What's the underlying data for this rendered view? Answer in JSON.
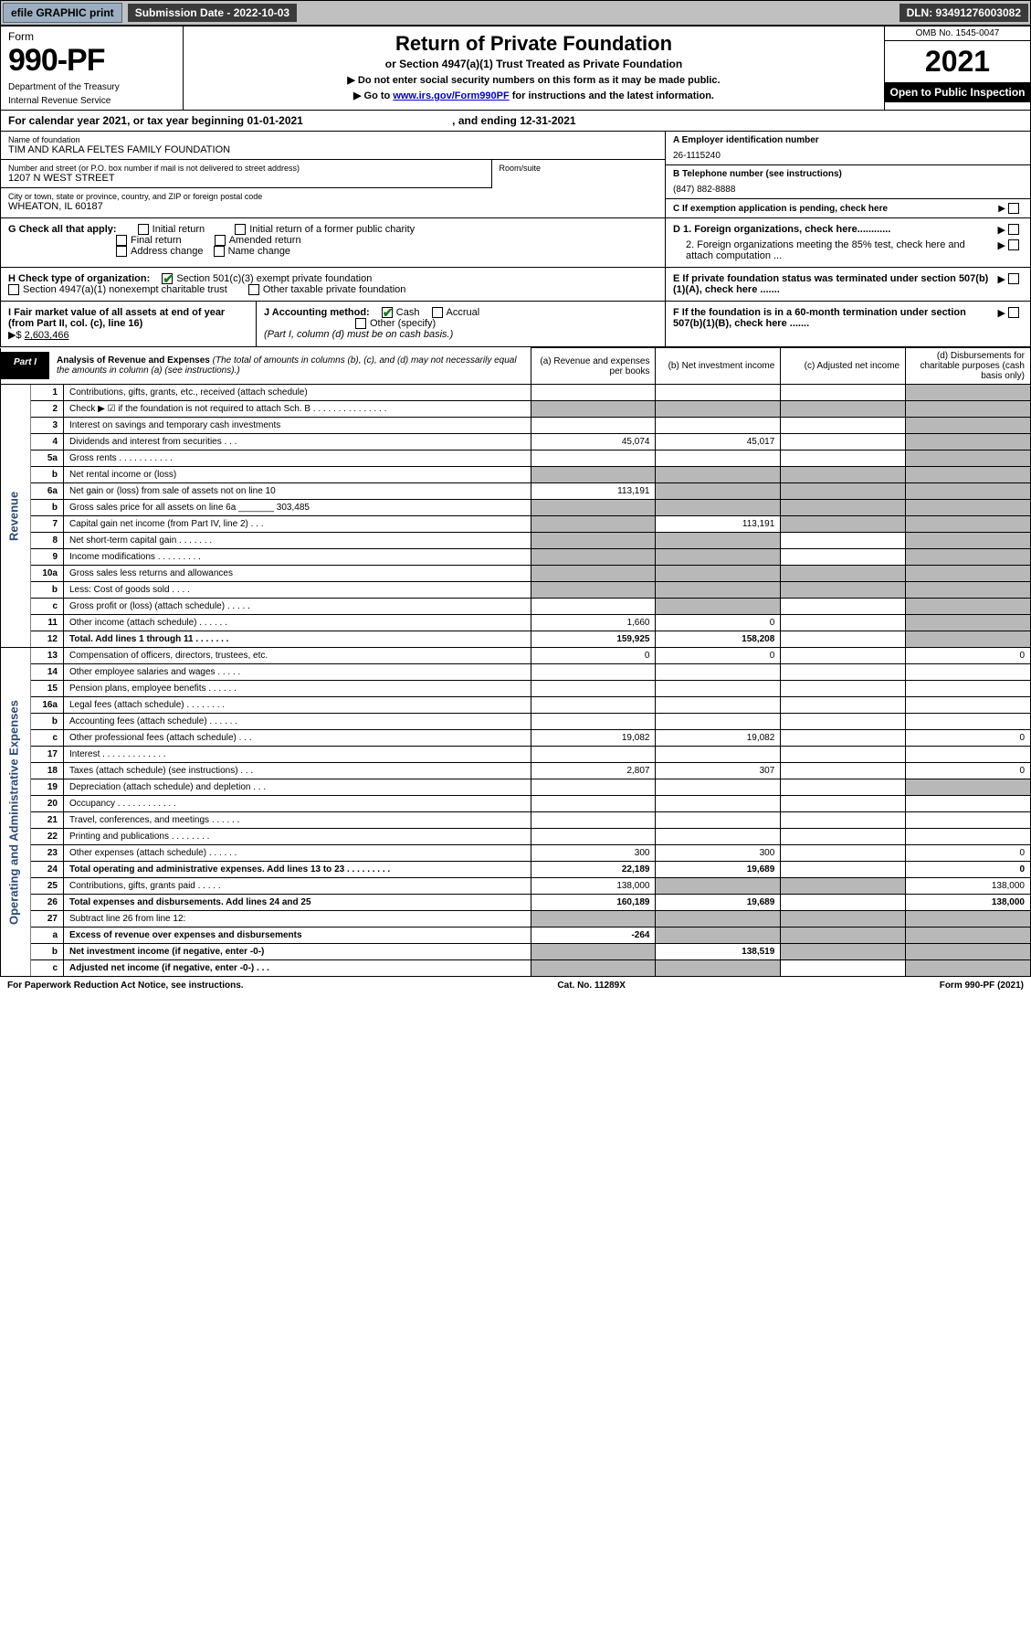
{
  "topbar": {
    "efile": "efile GRAPHIC print",
    "submission_label": "Submission Date - 2022-10-03",
    "dln": "DLN: 93491276003082"
  },
  "header": {
    "form_label": "Form",
    "form_number": "990-PF",
    "dept1": "Department of the Treasury",
    "dept2": "Internal Revenue Service",
    "title": "Return of Private Foundation",
    "subtitle": "or Section 4947(a)(1) Trust Treated as Private Foundation",
    "note1": "▶ Do not enter social security numbers on this form as it may be made public.",
    "note2_pre": "▶ Go to ",
    "note2_link": "www.irs.gov/Form990PF",
    "note2_post": " for instructions and the latest information.",
    "omb": "OMB No. 1545-0047",
    "year": "2021",
    "open": "Open to Public Inspection"
  },
  "calendar": {
    "text_pre": "For calendar year 2021, or tax year beginning ",
    "begin": "01-01-2021",
    "text_mid": " , and ending ",
    "end": "12-31-2021"
  },
  "info": {
    "name_lbl": "Name of foundation",
    "name_val": "TIM AND KARLA FELTES FAMILY FOUNDATION",
    "addr_lbl": "Number and street (or P.O. box number if mail is not delivered to street address)",
    "addr_val": "1207 N WEST STREET",
    "room_lbl": "Room/suite",
    "city_lbl": "City or town, state or province, country, and ZIP or foreign postal code",
    "city_val": "WHEATON, IL  60187",
    "a_lbl": "A Employer identification number",
    "a_val": "26-1115240",
    "b_lbl": "B Telephone number (see instructions)",
    "b_val": "(847) 882-8888",
    "c_lbl": "C If exemption application is pending, check here",
    "g_lbl": "G Check all that apply:",
    "g_opts": [
      "Initial return",
      "Final return",
      "Address change",
      "Initial return of a former public charity",
      "Amended return",
      "Name change"
    ],
    "d1": "D 1. Foreign organizations, check here............",
    "d2": "2. Foreign organizations meeting the 85% test, check here and attach computation ...",
    "h_lbl": "H Check type of organization:",
    "h_1": "Section 501(c)(3) exempt private foundation",
    "h_2": "Section 4947(a)(1) nonexempt charitable trust",
    "h_3": "Other taxable private foundation",
    "e_lbl": "E If private foundation status was terminated under section 507(b)(1)(A), check here .......",
    "i_lbl": "I Fair market value of all assets at end of year (from Part II, col. (c), line 16)",
    "i_val": "2,603,466",
    "j_lbl": "J Accounting method:",
    "j_cash": "Cash",
    "j_accrual": "Accrual",
    "j_other": "Other (specify)",
    "j_note": "(Part I, column (d) must be on cash basis.)",
    "f_lbl": "F If the foundation is in a 60-month termination under section 507(b)(1)(B), check here ......."
  },
  "part1": {
    "label": "Part I",
    "title": "Analysis of Revenue and Expenses",
    "title_note": "(The total of amounts in columns (b), (c), and (d) may not necessarily equal the amounts in column (a) (see instructions).)",
    "cols": {
      "a": "(a) Revenue and expenses per books",
      "b": "(b) Net investment income",
      "c": "(c) Adjusted net income",
      "d": "(d) Disbursements for charitable purposes (cash basis only)"
    }
  },
  "side_labels": {
    "revenue": "Revenue",
    "expenses": "Operating and Administrative Expenses"
  },
  "rows": [
    {
      "n": "1",
      "desc": "Contributions, gifts, grants, etc., received (attach schedule)",
      "a": "",
      "b": "",
      "c": "",
      "d": "shade"
    },
    {
      "n": "2",
      "desc": "Check ▶ ☑ if the foundation is not required to attach Sch. B   .   .   .   .   .   .   .   .   .   .   .   .   .   .   .",
      "a": "shade",
      "b": "shade",
      "c": "shade",
      "d": "shade"
    },
    {
      "n": "3",
      "desc": "Interest on savings and temporary cash investments",
      "a": "",
      "b": "",
      "c": "",
      "d": "shade"
    },
    {
      "n": "4",
      "desc": "Dividends and interest from securities   .   .   .",
      "a": "45,074",
      "b": "45,017",
      "c": "",
      "d": "shade"
    },
    {
      "n": "5a",
      "desc": "Gross rents   .   .   .   .   .   .   .   .   .   .   .",
      "a": "",
      "b": "",
      "c": "",
      "d": "shade"
    },
    {
      "n": "b",
      "desc": "Net rental income or (loss)",
      "a": "shade",
      "b": "shade",
      "c": "shade",
      "d": "shade"
    },
    {
      "n": "6a",
      "desc": "Net gain or (loss) from sale of assets not on line 10",
      "a": "113,191",
      "b": "shade",
      "c": "shade",
      "d": "shade"
    },
    {
      "n": "b",
      "desc": "Gross sales price for all assets on line 6a _______ 303,485",
      "a": "shade",
      "b": "shade",
      "c": "shade",
      "d": "shade"
    },
    {
      "n": "7",
      "desc": "Capital gain net income (from Part IV, line 2)   .   .   .",
      "a": "shade",
      "b": "113,191",
      "c": "shade",
      "d": "shade"
    },
    {
      "n": "8",
      "desc": "Net short-term capital gain   .   .   .   .   .   .   .",
      "a": "shade",
      "b": "shade",
      "c": "",
      "d": "shade"
    },
    {
      "n": "9",
      "desc": "Income modifications .   .   .   .   .   .   .   .   .",
      "a": "shade",
      "b": "shade",
      "c": "",
      "d": "shade"
    },
    {
      "n": "10a",
      "desc": "Gross sales less returns and allowances",
      "a": "shade",
      "b": "shade",
      "c": "shade",
      "d": "shade"
    },
    {
      "n": "b",
      "desc": "Less: Cost of goods sold   .   .   .   .",
      "a": "shade",
      "b": "shade",
      "c": "shade",
      "d": "shade"
    },
    {
      "n": "c",
      "desc": "Gross profit or (loss) (attach schedule)   .   .   .   .   .",
      "a": "",
      "b": "shade",
      "c": "",
      "d": "shade"
    },
    {
      "n": "11",
      "desc": "Other income (attach schedule)   .   .   .   .   .   .",
      "a": "1,660",
      "b": "0",
      "c": "",
      "d": "shade"
    },
    {
      "n": "12",
      "desc": "Total. Add lines 1 through 11   .   .   .   .   .   .   .",
      "a": "159,925",
      "b": "158,208",
      "c": "",
      "d": "shade",
      "bold": true
    },
    {
      "n": "13",
      "desc": "Compensation of officers, directors, trustees, etc.",
      "a": "0",
      "b": "0",
      "c": "",
      "d": "0"
    },
    {
      "n": "14",
      "desc": "Other employee salaries and wages   .   .   .   .   .",
      "a": "",
      "b": "",
      "c": "",
      "d": ""
    },
    {
      "n": "15",
      "desc": "Pension plans, employee benefits   .   .   .   .   .   .",
      "a": "",
      "b": "",
      "c": "",
      "d": ""
    },
    {
      "n": "16a",
      "desc": "Legal fees (attach schedule) .   .   .   .   .   .   .   .",
      "a": "",
      "b": "",
      "c": "",
      "d": ""
    },
    {
      "n": "b",
      "desc": "Accounting fees (attach schedule)  .   .   .   .   .   .",
      "a": "",
      "b": "",
      "c": "",
      "d": ""
    },
    {
      "n": "c",
      "desc": "Other professional fees (attach schedule)   .   .   .",
      "a": "19,082",
      "b": "19,082",
      "c": "",
      "d": "0"
    },
    {
      "n": "17",
      "desc": "Interest .   .   .   .   .   .   .   .   .   .   .   .   .",
      "a": "",
      "b": "",
      "c": "",
      "d": ""
    },
    {
      "n": "18",
      "desc": "Taxes (attach schedule) (see instructions)   .   .   .",
      "a": "2,807",
      "b": "307",
      "c": "",
      "d": "0"
    },
    {
      "n": "19",
      "desc": "Depreciation (attach schedule) and depletion   .   .   .",
      "a": "",
      "b": "",
      "c": "",
      "d": "shade"
    },
    {
      "n": "20",
      "desc": "Occupancy .   .   .   .   .   .   .   .   .   .   .   .",
      "a": "",
      "b": "",
      "c": "",
      "d": ""
    },
    {
      "n": "21",
      "desc": "Travel, conferences, and meetings .   .   .   .   .   .",
      "a": "",
      "b": "",
      "c": "",
      "d": ""
    },
    {
      "n": "22",
      "desc": "Printing and publications   .   .   .   .   .   .   .   .",
      "a": "",
      "b": "",
      "c": "",
      "d": ""
    },
    {
      "n": "23",
      "desc": "Other expenses (attach schedule) .   .   .   .   .   .",
      "a": "300",
      "b": "300",
      "c": "",
      "d": "0"
    },
    {
      "n": "24",
      "desc": "Total operating and administrative expenses. Add lines 13 to 23  .   .   .   .   .   .   .   .   .",
      "a": "22,189",
      "b": "19,689",
      "c": "",
      "d": "0",
      "bold": true
    },
    {
      "n": "25",
      "desc": "Contributions, gifts, grants paid   .   .   .   .   .",
      "a": "138,000",
      "b": "shade",
      "c": "shade",
      "d": "138,000"
    },
    {
      "n": "26",
      "desc": "Total expenses and disbursements. Add lines 24 and 25",
      "a": "160,189",
      "b": "19,689",
      "c": "",
      "d": "138,000",
      "bold": true
    },
    {
      "n": "27",
      "desc": "Subtract line 26 from line 12:",
      "a": "shade",
      "b": "shade",
      "c": "shade",
      "d": "shade"
    },
    {
      "n": "a",
      "desc": "Excess of revenue over expenses and disbursements",
      "a": "-264",
      "b": "shade",
      "c": "shade",
      "d": "shade",
      "bold": true
    },
    {
      "n": "b",
      "desc": "Net investment income (if negative, enter -0-)",
      "a": "shade",
      "b": "138,519",
      "c": "shade",
      "d": "shade",
      "bold": true
    },
    {
      "n": "c",
      "desc": "Adjusted net income (if negative, enter -0-)   .   .   .",
      "a": "shade",
      "b": "shade",
      "c": "",
      "d": "shade",
      "bold": true
    }
  ],
  "footer": {
    "left": "For Paperwork Reduction Act Notice, see instructions.",
    "center": "Cat. No. 11289X",
    "right": "Form 990-PF (2021)"
  },
  "colors": {
    "topbar_bg": "#c0c0c0",
    "btn_bg": "#9caec0",
    "dark_bg": "#3a3a3a",
    "shade": "#b8b8b8",
    "link": "#0000cc",
    "check_green": "#1a7a1a",
    "side_blue": "#2a4a7a"
  }
}
